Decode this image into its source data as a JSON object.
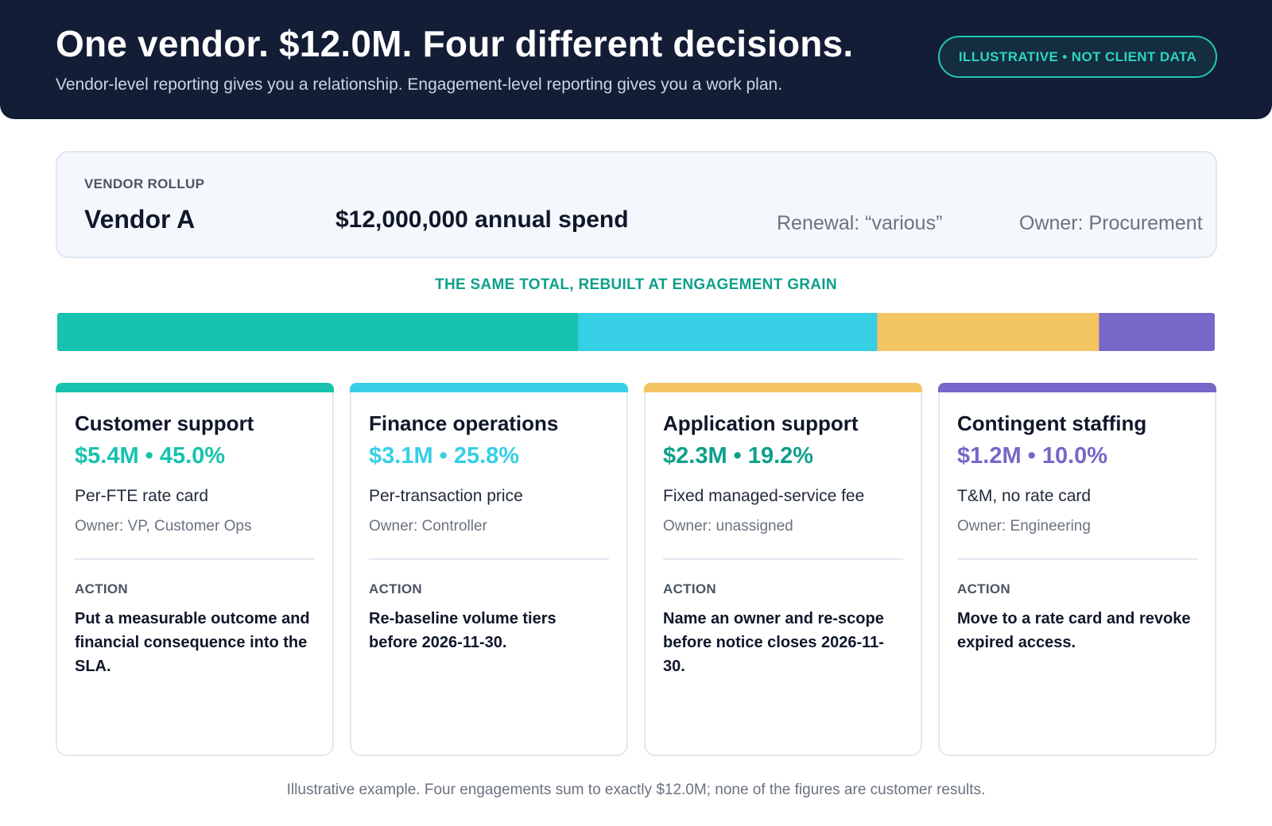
{
  "header": {
    "title": "One vendor. $12.0M. Four different decisions.",
    "subtitle": "Vendor-level reporting gives you a relationship. Engagement-level reporting gives you a work plan.",
    "badge": "ILLUSTRATIVE • NOT CLIENT DATA"
  },
  "rollup": {
    "label": "VENDOR ROLLUP",
    "vendor": "Vendor A",
    "spend": "$12,000,000 annual spend",
    "renewal": "Renewal: “various”",
    "owner": "Owner: Procurement"
  },
  "grain_label": "THE SAME TOTAL, REBUILT AT ENGAGEMENT GRAIN",
  "chart_data": {
    "type": "bar",
    "stacked": true,
    "orientation": "horizontal",
    "total": 12.0,
    "unit": "$M",
    "series": [
      {
        "name": "Customer support",
        "value": 5.4,
        "percent": 45.0,
        "color": "#17c2ae"
      },
      {
        "name": "Finance operations",
        "value": 3.1,
        "percent": 25.8,
        "color": "#36cfe6"
      },
      {
        "name": "Application support",
        "value": 2.3,
        "percent": 19.2,
        "color": "#f3c462"
      },
      {
        "name": "Contingent staffing",
        "value": 1.2,
        "percent": 10.0,
        "color": "#7667c8"
      }
    ]
  },
  "cards": [
    {
      "title": "Customer support",
      "metric": "$5.4M • 45.0%",
      "pricing": "Per-FTE rate card",
      "owner": "Owner: VP, Customer Ops",
      "action_label": "ACTION",
      "action": "Put a measurable outcome and financial consequence into the SLA.",
      "color": "#17c2ae",
      "metric_color": "#17c2ae"
    },
    {
      "title": "Finance operations",
      "metric": "$3.1M • 25.8%",
      "pricing": "Per-transaction price",
      "owner": "Owner: Controller",
      "action_label": "ACTION",
      "action": "Re-baseline volume tiers before 2026-11-30.",
      "color": "#36cfe6",
      "metric_color": "#36cfe6"
    },
    {
      "title": "Application support",
      "metric": "$2.3M • 19.2%",
      "pricing": "Fixed managed-service fee",
      "owner": "Owner: unassigned",
      "action_label": "ACTION",
      "action": "Name an owner and re-scope before notice closes 2026-11-30.",
      "color": "#f3c462",
      "metric_color": "#0e9f8a"
    },
    {
      "title": "Contingent staffing",
      "metric": "$1.2M • 10.0%",
      "pricing": "T&M, no rate card",
      "owner": "Owner: Engineering",
      "action_label": "ACTION",
      "action": "Move to a rate card and revoke expired access.",
      "color": "#7667c8",
      "metric_color": "#7667c8"
    }
  ],
  "footnote": "Illustrative example. Four engagements sum to exactly $12.0M; none of the figures are customer results."
}
